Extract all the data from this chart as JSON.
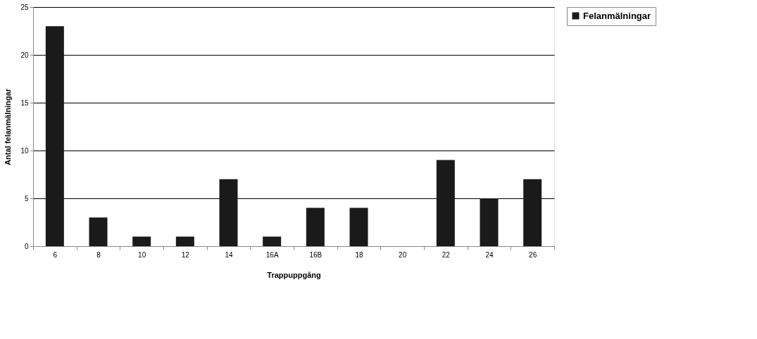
{
  "chart_data": {
    "type": "bar",
    "xlabel": "Trappuppgång",
    "ylabel": "Antal felanmälningar",
    "categories": [
      "6",
      "8",
      "10",
      "12",
      "14",
      "16A",
      "16B",
      "18",
      "20",
      "22",
      "24",
      "26"
    ],
    "series": [
      {
        "name": "Felanmälningar",
        "color": "#1a1a1a",
        "values": [
          23,
          3,
          1,
          1,
          7,
          1,
          4,
          4,
          0,
          9,
          5,
          7
        ]
      }
    ],
    "ylim": [
      0,
      25
    ],
    "yticks": [
      0,
      5,
      10,
      15,
      20,
      25
    ],
    "grid": "y",
    "legend": "right"
  }
}
